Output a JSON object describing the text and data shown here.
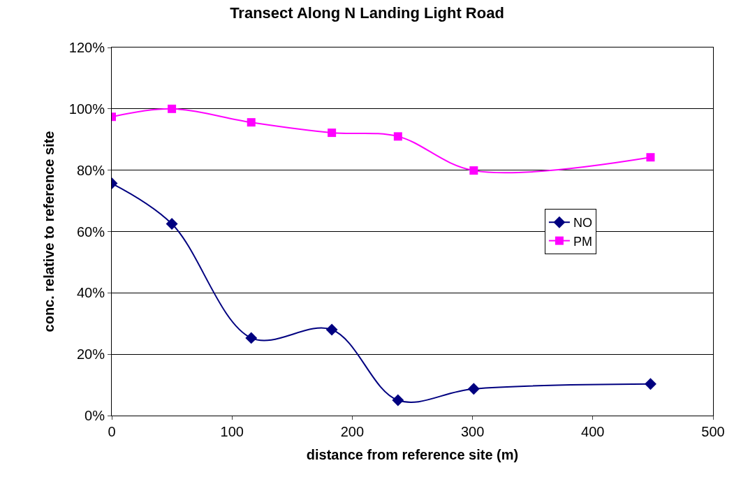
{
  "chart_data": {
    "type": "line",
    "title": "Transect Along N Landing Light Road",
    "xlabel": "distance from reference site (m)",
    "ylabel": "conc. relative to reference site",
    "x": [
      0,
      50,
      116,
      183,
      238,
      301,
      448
    ],
    "series": [
      {
        "name": "NO",
        "color": "#000080",
        "marker": "diamond",
        "values": [
          75.7,
          62.5,
          25.3,
          28.0,
          5.0,
          8.7,
          10.3
        ]
      },
      {
        "name": "PM",
        "color": "#ff00ff",
        "marker": "square",
        "values": [
          97.4,
          100.0,
          95.6,
          92.2,
          91.0,
          79.9,
          84.2
        ]
      }
    ],
    "xlim": [
      0,
      500
    ],
    "xticks": [
      0,
      100,
      200,
      300,
      400,
      500
    ],
    "ylim": [
      0,
      120
    ],
    "yticks": [
      {
        "value": 0,
        "label": "0%"
      },
      {
        "value": 20,
        "label": "20%"
      },
      {
        "value": 40,
        "label": "40%"
      },
      {
        "value": 60,
        "label": "60%"
      },
      {
        "value": 80,
        "label": "80%"
      },
      {
        "value": 100,
        "label": "100%"
      },
      {
        "value": 120,
        "label": "120%"
      }
    ],
    "grid": "y",
    "legend": "right",
    "line_style": "solid"
  }
}
